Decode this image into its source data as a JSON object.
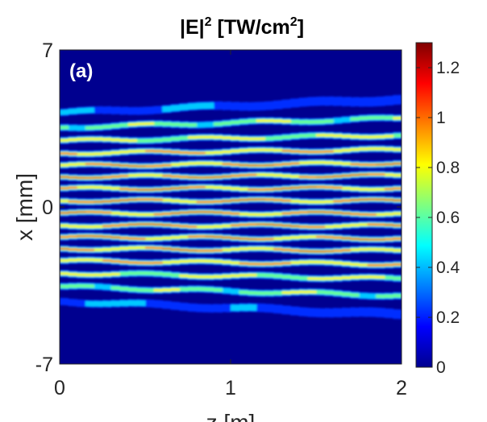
{
  "chart_data": {
    "type": "heatmap",
    "title": {
      "base": "|E|",
      "exp1": "2",
      "mid": " [TW/cm",
      "exp2": "2",
      "end": "]"
    },
    "panel_label": "(a)",
    "xlabel": "z [m]",
    "ylabel": "x [mm]",
    "xlim": [
      0,
      2
    ],
    "ylim": [
      -7,
      7
    ],
    "x_ticks": [
      {
        "value": 0,
        "label": "0"
      },
      {
        "value": 1,
        "label": "1"
      },
      {
        "value": 2,
        "label": "2"
      }
    ],
    "y_ticks": [
      {
        "value": 7,
        "label": "7"
      },
      {
        "value": 0,
        "label": "0"
      },
      {
        "value": -7,
        "label": "-7"
      }
    ],
    "colorbar": {
      "colormap": "jet",
      "range": [
        0,
        1.3
      ],
      "ticks": [
        {
          "value": 0,
          "label": "0"
        },
        {
          "value": 0.2,
          "label": "0.2"
        },
        {
          "value": 0.4,
          "label": "0.4"
        },
        {
          "value": 0.6,
          "label": "0.6"
        },
        {
          "value": 0.8,
          "label": "0.8"
        },
        {
          "value": 1,
          "label": "1"
        },
        {
          "value": 1.2,
          "label": "1.2"
        }
      ]
    },
    "filaments": [
      {
        "x0": 4.2,
        "x_end": 4.8,
        "peak": 0.5
      },
      {
        "x0": 3.55,
        "x_end": 3.95,
        "peak": 0.85
      },
      {
        "x0": 2.95,
        "x_end": 3.2,
        "peak": 1.0
      },
      {
        "x0": 2.4,
        "x_end": 2.55,
        "peak": 1.15
      },
      {
        "x0": 1.85,
        "x_end": 1.95,
        "peak": 1.25
      },
      {
        "x0": 1.35,
        "x_end": 1.4,
        "peak": 1.3
      },
      {
        "x0": 0.82,
        "x_end": 0.84,
        "peak": 1.3
      },
      {
        "x0": 0.28,
        "x_end": 0.28,
        "peak": 1.3
      },
      {
        "x0": -0.28,
        "x_end": -0.28,
        "peak": 1.3
      },
      {
        "x0": -0.82,
        "x_end": -0.84,
        "peak": 1.3
      },
      {
        "x0": -1.35,
        "x_end": -1.4,
        "peak": 1.3
      },
      {
        "x0": -1.85,
        "x_end": -1.95,
        "peak": 1.25
      },
      {
        "x0": -2.4,
        "x_end": -2.55,
        "peak": 1.15
      },
      {
        "x0": -2.95,
        "x_end": -3.2,
        "peak": 1.0
      },
      {
        "x0": -3.55,
        "x_end": -3.95,
        "peak": 0.85
      },
      {
        "x0": -4.2,
        "x_end": -4.8,
        "peak": 0.5
      }
    ]
  }
}
